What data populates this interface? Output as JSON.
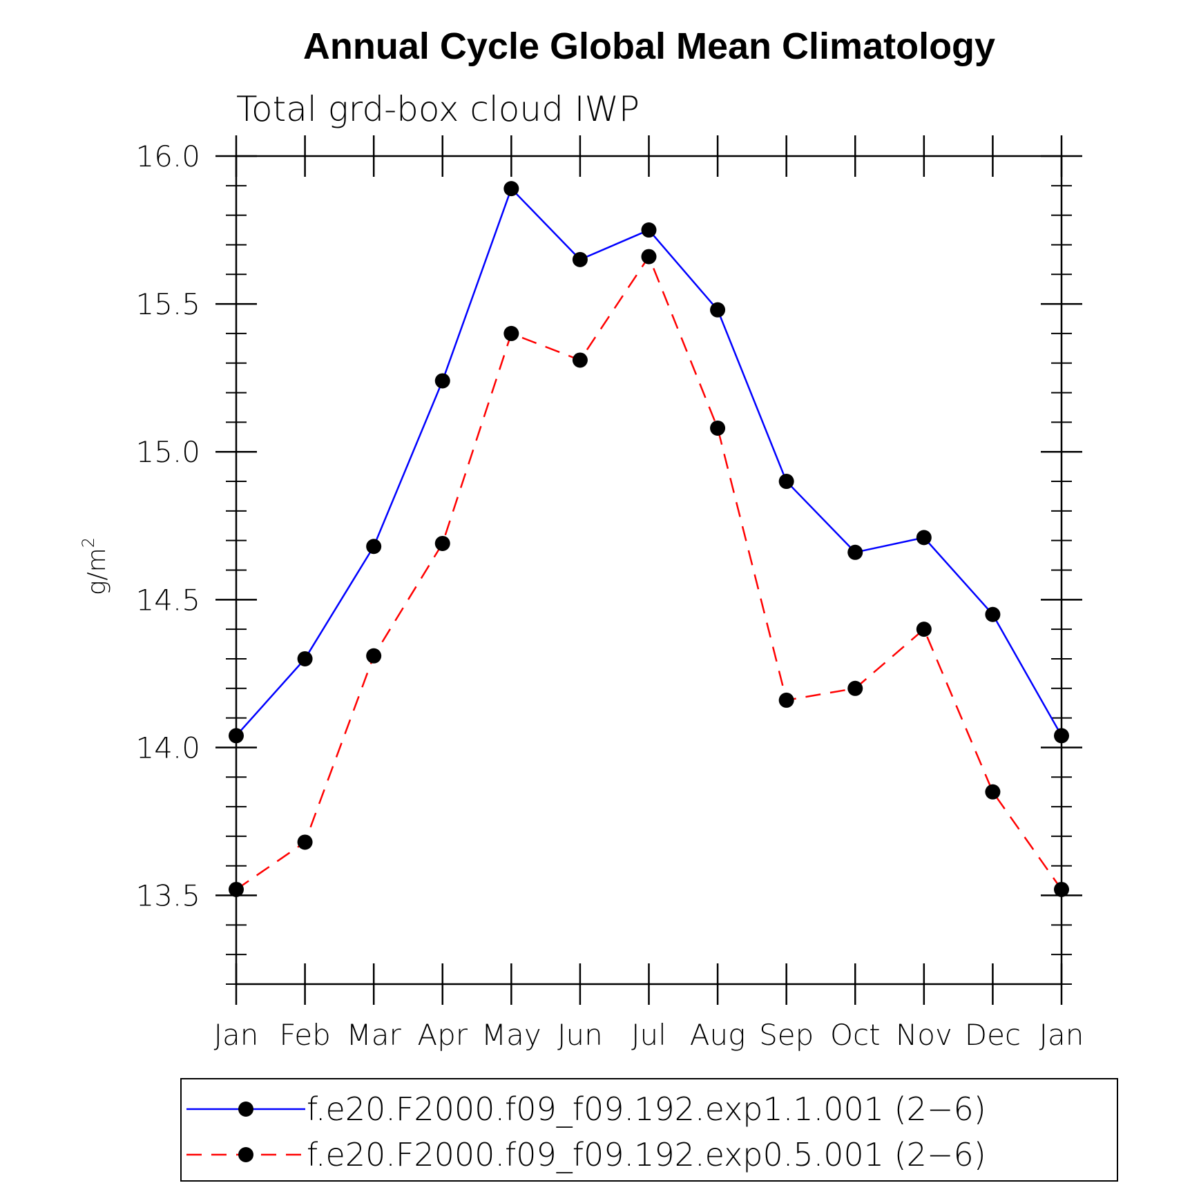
{
  "chart_data": {
    "type": "line",
    "title": "Annual Cycle Global Mean Climatology",
    "subtitle": "Total grd-box cloud IWP",
    "ylabel": "g/m",
    "ylabel_superscript": "2",
    "ylim": [
      13.2,
      16.0
    ],
    "yticks": [
      13.5,
      14.0,
      14.5,
      15.0,
      15.5,
      16.0
    ],
    "ytick_labels": [
      "13.5",
      "14.0",
      "14.5",
      "15.0",
      "15.5",
      "16.0"
    ],
    "categories": [
      "Jan",
      "Feb",
      "Mar",
      "Apr",
      "May",
      "Jun",
      "Jul",
      "Aug",
      "Sep",
      "Oct",
      "Nov",
      "Dec",
      "Jan"
    ],
    "series": [
      {
        "name": "f.e20.F2000.f09_f09.192.exp1.1.001 (2-6)",
        "legend_label": "f.e20.F2000.f09_f09.192.exp1.1.001 (2−6)",
        "color": "#0000ff",
        "style": "solid",
        "values": [
          14.04,
          14.3,
          14.68,
          15.24,
          15.89,
          15.65,
          15.75,
          15.48,
          14.9,
          14.66,
          14.71,
          14.45,
          14.04
        ]
      },
      {
        "name": "f.e20.F2000.f09_f09.192.exp0.5.001 (2-6)",
        "legend_label": "f.e20.F2000.f09_f09.192.exp0.5.001 (2−6)",
        "color": "#ff0000",
        "style": "dashed",
        "values": [
          13.52,
          13.68,
          14.31,
          14.69,
          15.4,
          15.31,
          15.66,
          15.08,
          14.16,
          14.2,
          14.4,
          13.85,
          13.52
        ]
      }
    ],
    "legend_position": "bottom"
  }
}
